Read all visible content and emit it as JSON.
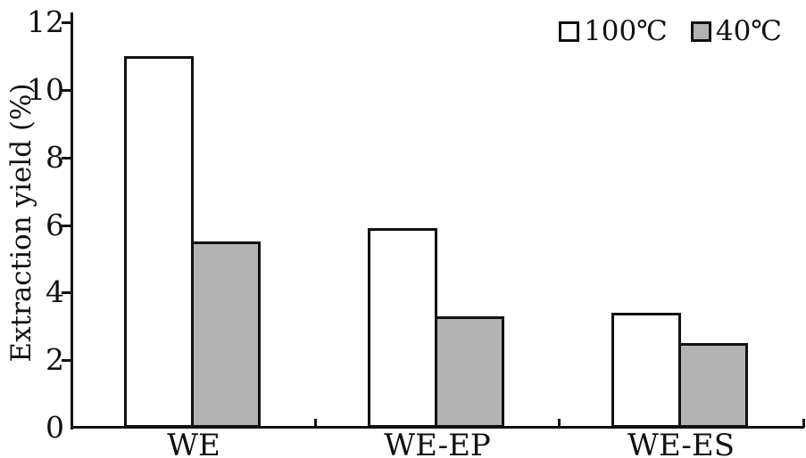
{
  "figure": {
    "background": "#ffffff",
    "ink_color": "#111111"
  },
  "chart_data": {
    "type": "bar",
    "title": "",
    "xlabel": "",
    "ylabel": "Extraction yield (%)",
    "categories": [
      "WE",
      "WE-EP",
      "WE-ES"
    ],
    "series": [
      {
        "name": "100℃",
        "color": "#ffffff",
        "border_color": "#111111",
        "values": [
          11.0,
          5.9,
          3.4
        ]
      },
      {
        "name": "40℃",
        "color": "#b3b3b3",
        "border_color": "#111111",
        "values": [
          5.5,
          3.3,
          2.5
        ]
      }
    ],
    "ylim": [
      0,
      12
    ],
    "yticks": [
      0,
      2,
      4,
      6,
      8,
      10,
      12
    ],
    "grid": false,
    "legend_position": "top-right"
  }
}
